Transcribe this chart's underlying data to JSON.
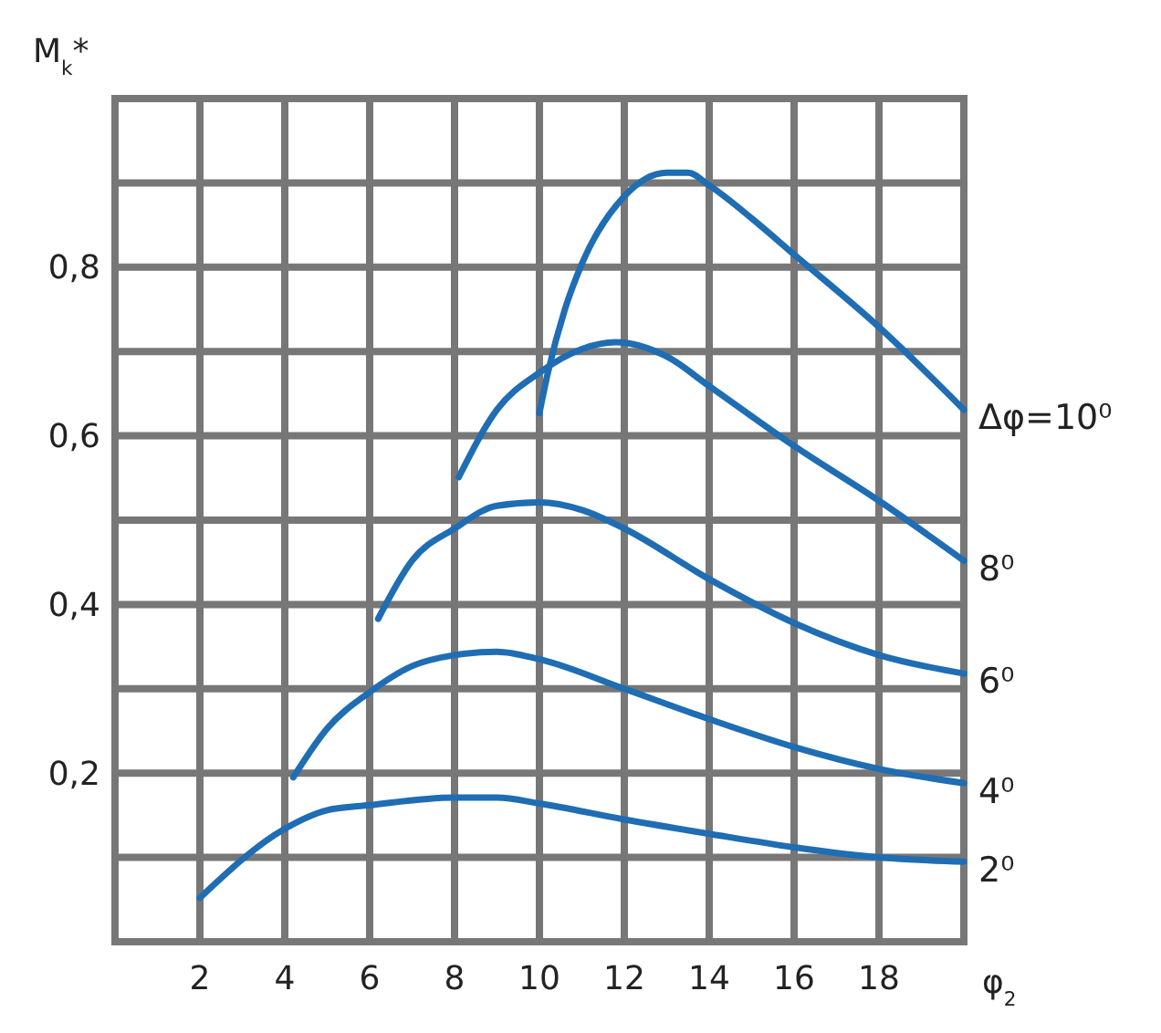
{
  "chart_data": {
    "type": "line",
    "ylabel": "M$_{k}$*",
    "xlabel": "φ$_{2}$",
    "xlim": [
      0,
      20
    ],
    "xticks": [
      {
        "value": 0,
        "label": null
      },
      2,
      4,
      6,
      8,
      10,
      12,
      14,
      16,
      18,
      {
        "value": 20,
        "label": null
      }
    ],
    "ylim": [
      0,
      1
    ],
    "yticks": [
      {
        "value": 0,
        "label": null
      },
      {
        "value": 0.1,
        "label": null
      },
      {
        "value": 0.2,
        "label": "0,2"
      },
      {
        "value": 0.3,
        "label": null
      },
      {
        "value": 0.4,
        "label": "0,4"
      },
      {
        "value": 0.5,
        "label": null
      },
      {
        "value": 0.6,
        "label": "0,6"
      },
      {
        "value": 0.7,
        "label": null
      },
      {
        "value": 0.8,
        "label": "0,8"
      },
      {
        "value": 0.9,
        "label": null
      },
      {
        "value": 1,
        "label": null
      }
    ],
    "grid": true,
    "legend": false,
    "marker": "none",
    "line_style": "solid",
    "series": [
      {
        "name": "2⁰",
        "color": "#1f6db3",
        "x": [
          2,
          4,
          5,
          6,
          8,
          9,
          10,
          12,
          14,
          16,
          18,
          20
        ],
        "values": [
          0.052,
          0.134,
          0.156,
          0.162,
          0.171,
          0.171,
          0.164,
          0.145,
          0.128,
          0.112,
          0.1,
          0.095
        ]
      },
      {
        "name": "4⁰",
        "color": "#1f6db3",
        "x": [
          4.2,
          5,
          6,
          7,
          8,
          9,
          10,
          12,
          14,
          16,
          18,
          20
        ],
        "values": [
          0.195,
          0.253,
          0.296,
          0.327,
          0.34,
          0.344,
          0.335,
          0.3,
          0.264,
          0.231,
          0.205,
          0.188
        ]
      },
      {
        "name": "6⁰",
        "color": "#1f6db3",
        "x": [
          6.2,
          7,
          8,
          9,
          10,
          11,
          12,
          14,
          16,
          18,
          20
        ],
        "values": [
          0.383,
          0.452,
          0.49,
          0.517,
          0.521,
          0.512,
          0.49,
          0.43,
          0.378,
          0.34,
          0.318
        ]
      },
      {
        "name": "8⁰",
        "color": "#1f6db3",
        "x": [
          8.1,
          9,
          10,
          11,
          11.8,
          13,
          14,
          16,
          18,
          20
        ],
        "values": [
          0.551,
          0.631,
          0.675,
          0.703,
          0.711,
          0.694,
          0.659,
          0.588,
          0.523,
          0.452
        ]
      },
      {
        "name": "Δφ=10⁰",
        "color": "#1f6db3",
        "x": [
          10,
          10.2,
          10.6,
          11,
          12,
          13,
          13.5,
          14,
          15,
          16,
          18,
          20
        ],
        "values": [
          0.627,
          0.675,
          0.75,
          0.804,
          0.884,
          0.912,
          0.912,
          0.897,
          0.858,
          0.815,
          0.729,
          0.631
        ]
      }
    ]
  }
}
